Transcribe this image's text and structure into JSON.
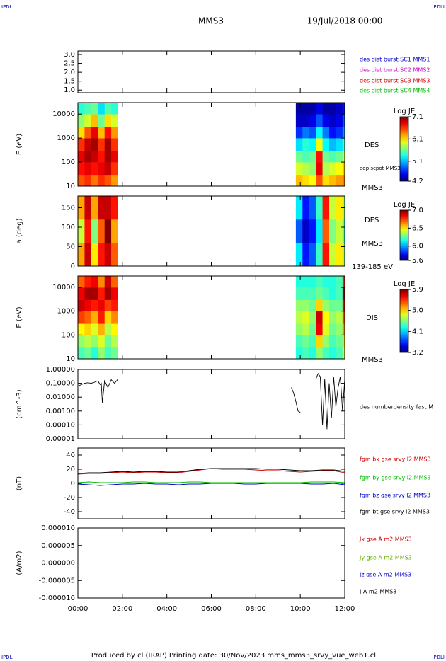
{
  "header": {
    "left": "IPDLI",
    "right": "IPDLI",
    "title": "MMS3",
    "date": "19/Jul/2018 00:00"
  },
  "footer": {
    "text": "Produced by cl (IRAP)   Printing date: 30/Nov/2023   mms_mms3_srvy_vue_web1.cl",
    "left": "IPDLI",
    "right": "IPDLI"
  },
  "chart_data": [
    {
      "type": "line",
      "xlim": [
        0,
        12
      ],
      "ylim": [
        0.85,
        3.2
      ],
      "yticks": [
        {
          "value": 1,
          "label": "1.0"
        },
        {
          "value": 1.5,
          "label": "1.5"
        },
        {
          "value": 2,
          "label": "2.0"
        },
        {
          "value": 2.5,
          "label": "2.5"
        },
        {
          "value": 3,
          "label": "3.0"
        }
      ],
      "x": [],
      "series": [
        {
          "name": "des dist burst SC1 MMS1",
          "color": "#0000cc",
          "values": []
        },
        {
          "name": "des dist burst SC2 MMS2",
          "color": "#cc00cc",
          "values": []
        },
        {
          "name": "des dist burst SC3 MMS3",
          "color": "#cc0000",
          "values": []
        },
        {
          "name": "des dist burst SC4 MMS4",
          "color": "#00bb00",
          "values": []
        }
      ]
    },
    {
      "type": "heatmap",
      "ylabel": "E (eV)",
      "xlim": [
        0,
        12
      ],
      "ylim": [
        10,
        30000
      ],
      "log_y": true,
      "yticks": [
        10,
        100,
        1000,
        10000
      ],
      "y_bins": [
        10,
        30,
        100,
        300,
        1000,
        3000,
        10000,
        30000
      ],
      "colorbar": {
        "title": "Log JE",
        "range": [
          4.2,
          7.1
        ],
        "ticks": [
          7.1,
          6.1,
          5.1,
          4.2
        ]
      },
      "annotations": [
        "DES",
        "edp scpot MMS3",
        "MMS3"
      ],
      "columns": [
        {
          "start": 0,
          "end": 0.3,
          "values": [
            6.5,
            6.7,
            6.8,
            6.6,
            6.1,
            5.7,
            5.4
          ]
        },
        {
          "start": 0.3,
          "end": 0.6,
          "values": [
            6.6,
            6.8,
            7.0,
            6.9,
            6.5,
            5.9,
            5.5
          ]
        },
        {
          "start": 0.6,
          "end": 0.9,
          "values": [
            6.4,
            6.7,
            6.9,
            7.0,
            6.8,
            6.2,
            5.6
          ]
        },
        {
          "start": 0.9,
          "end": 1.2,
          "values": [
            6.6,
            6.8,
            6.7,
            6.6,
            6.2,
            5.6,
            5.2
          ]
        },
        {
          "start": 1.2,
          "end": 1.5,
          "values": [
            6.5,
            6.9,
            7.0,
            7.0,
            6.7,
            6.1,
            5.5
          ]
        },
        {
          "start": 1.5,
          "end": 1.8,
          "values": [
            6.3,
            6.6,
            6.8,
            6.6,
            6.3,
            5.9,
            5.4
          ]
        },
        {
          "start": 9.8,
          "end": 10.1,
          "values": [
            6.2,
            5.9,
            5.6,
            5.2,
            4.7,
            4.4,
            4.3
          ]
        },
        {
          "start": 10.1,
          "end": 10.4,
          "values": [
            6.1,
            5.8,
            5.5,
            5.4,
            4.9,
            4.4,
            4.3
          ]
        },
        {
          "start": 10.4,
          "end": 10.7,
          "values": [
            6.0,
            5.7,
            5.6,
            5.3,
            4.8,
            4.5,
            4.3
          ]
        },
        {
          "start": 10.7,
          "end": 11.0,
          "values": [
            6.5,
            6.8,
            6.7,
            6.0,
            5.3,
            4.8,
            4.5
          ]
        },
        {
          "start": 11.0,
          "end": 11.3,
          "values": [
            6.1,
            5.8,
            5.6,
            5.3,
            4.9,
            4.5,
            4.3
          ]
        },
        {
          "start": 11.3,
          "end": 11.6,
          "values": [
            6.2,
            5.9,
            5.5,
            5.1,
            4.6,
            4.4,
            4.3
          ]
        },
        {
          "start": 11.6,
          "end": 11.9,
          "values": [
            6.3,
            6.0,
            5.6,
            5.2,
            4.7,
            4.5,
            4.4
          ]
        },
        {
          "start": 11.9,
          "end": 12,
          "values": [
            6.4,
            6.2,
            5.9,
            5.5,
            5.0,
            4.8,
            4.6
          ]
        }
      ]
    },
    {
      "type": "heatmap",
      "ylabel": "a (deg)",
      "xlim": [
        0,
        12
      ],
      "ylim": [
        0,
        180
      ],
      "log_y": false,
      "yticks": [
        0,
        50,
        100,
        150
      ],
      "y_bins": [
        0,
        60,
        120,
        180
      ],
      "colorbar": {
        "title": "Log JE",
        "range": [
          5.6,
          7.0
        ],
        "ticks": [
          {
            "value": 7,
            "label": "7.0"
          },
          6.5,
          {
            "value": 6,
            "label": "6.0"
          },
          5.6
        ]
      },
      "annotations": [
        "DES",
        "MMS3",
        "139-185 eV"
      ],
      "columns": [
        {
          "start": 0,
          "end": 0.3,
          "values": [
            6.6,
            6.4,
            6.6
          ]
        },
        {
          "start": 0.3,
          "end": 0.6,
          "values": [
            6.9,
            6.8,
            6.9
          ]
        },
        {
          "start": 0.6,
          "end": 0.9,
          "values": [
            6.5,
            6.3,
            6.6
          ]
        },
        {
          "start": 0.9,
          "end": 1.2,
          "values": [
            6.8,
            6.7,
            6.9
          ]
        },
        {
          "start": 1.2,
          "end": 1.5,
          "values": [
            6.9,
            7.0,
            6.9
          ]
        },
        {
          "start": 1.5,
          "end": 1.8,
          "values": [
            6.7,
            6.6,
            6.8
          ]
        },
        {
          "start": 9.8,
          "end": 10.1,
          "values": [
            6.1,
            5.9,
            6.1
          ]
        },
        {
          "start": 10.1,
          "end": 10.4,
          "values": [
            5.8,
            5.7,
            5.8
          ]
        },
        {
          "start": 10.4,
          "end": 10.7,
          "values": [
            5.9,
            5.8,
            5.9
          ]
        },
        {
          "start": 10.7,
          "end": 11.0,
          "values": [
            6.2,
            6.1,
            6.2
          ]
        },
        {
          "start": 11.0,
          "end": 11.3,
          "values": [
            6.8,
            6.7,
            6.8
          ]
        },
        {
          "start": 11.3,
          "end": 11.6,
          "values": [
            6.4,
            6.3,
            6.4
          ]
        },
        {
          "start": 11.6,
          "end": 11.9,
          "values": [
            6.5,
            6.4,
            6.5
          ]
        },
        {
          "start": 11.9,
          "end": 12,
          "values": [
            6.3,
            6.2,
            6.3
          ]
        }
      ]
    },
    {
      "type": "heatmap",
      "ylabel": "E (eV)",
      "xlim": [
        0,
        12
      ],
      "ylim": [
        10,
        30000
      ],
      "log_y": true,
      "yticks": [
        10,
        100,
        1000,
        10000
      ],
      "y_bins": [
        10,
        30,
        100,
        300,
        1000,
        3000,
        10000,
        30000
      ],
      "colorbar": {
        "title": "Log JE",
        "range": [
          3.2,
          5.9
        ],
        "ticks": [
          5.9,
          {
            "value": 5,
            "label": "5.0"
          },
          4.1,
          3.2
        ]
      },
      "annotations": [
        "DIS",
        "MMS3"
      ],
      "columns": [
        {
          "start": 0,
          "end": 0.3,
          "values": [
            4.4,
            4.6,
            4.9,
            5.4,
            5.7,
            5.6,
            5.3
          ]
        },
        {
          "start": 0.3,
          "end": 0.6,
          "values": [
            4.5,
            4.7,
            5.0,
            5.3,
            5.6,
            5.8,
            5.5
          ]
        },
        {
          "start": 0.6,
          "end": 0.9,
          "values": [
            4.3,
            4.6,
            4.8,
            5.1,
            5.5,
            5.8,
            5.6
          ]
        },
        {
          "start": 0.9,
          "end": 1.2,
          "values": [
            4.6,
            4.8,
            5.1,
            5.5,
            5.6,
            5.5,
            5.2
          ]
        },
        {
          "start": 1.2,
          "end": 1.5,
          "values": [
            4.4,
            4.5,
            4.7,
            5.0,
            5.4,
            5.8,
            5.7
          ]
        },
        {
          "start": 1.5,
          "end": 1.8,
          "values": [
            4.5,
            4.7,
            4.9,
            5.2,
            5.5,
            5.6,
            5.3
          ]
        },
        {
          "start": 9.8,
          "end": 10.1,
          "values": [
            4.3,
            4.4,
            4.6,
            4.7,
            4.6,
            4.4,
            4.3
          ]
        },
        {
          "start": 10.1,
          "end": 10.4,
          "values": [
            4.4,
            4.5,
            4.7,
            4.8,
            4.6,
            4.4,
            4.3
          ]
        },
        {
          "start": 10.4,
          "end": 10.7,
          "values": [
            4.3,
            4.4,
            4.5,
            4.6,
            4.5,
            4.4,
            4.3
          ]
        },
        {
          "start": 10.7,
          "end": 11.0,
          "values": [
            4.6,
            5.0,
            5.6,
            5.7,
            5.0,
            4.5,
            4.4
          ]
        },
        {
          "start": 11.0,
          "end": 11.3,
          "values": [
            4.4,
            4.6,
            4.8,
            4.9,
            4.6,
            4.4,
            4.3
          ]
        },
        {
          "start": 11.3,
          "end": 11.6,
          "values": [
            4.3,
            4.4,
            4.5,
            4.6,
            4.5,
            4.3,
            4.3
          ]
        },
        {
          "start": 11.6,
          "end": 11.9,
          "values": [
            4.4,
            4.5,
            4.6,
            4.7,
            4.5,
            4.4,
            4.4
          ]
        },
        {
          "start": 11.9,
          "end": 12,
          "values": [
            4.8,
            5.0,
            5.2,
            5.4,
            5.6,
            5.8,
            5.5
          ]
        }
      ]
    },
    {
      "type": "line",
      "ylabel": "(cm^-3)",
      "xlim": [
        0,
        12
      ],
      "ylim": [
        1e-05,
        1
      ],
      "log_y": true,
      "yticks": [
        {
          "value": 1,
          "label": "1.00000"
        },
        {
          "value": 0.1,
          "label": "0.10000"
        },
        {
          "value": 0.01,
          "label": "0.01000"
        },
        {
          "value": 0.001,
          "label": "0.00100"
        },
        {
          "value": 0.0001,
          "label": "0.00010"
        },
        {
          "value": 1e-05,
          "label": "0.00001"
        }
      ],
      "x": [
        0,
        0.15,
        0.3,
        0.45,
        0.6,
        0.75,
        0.9,
        1.0,
        1.05,
        1.1,
        1.2,
        1.35,
        1.5,
        1.65,
        1.8,
        1.85,
        9.6,
        9.7,
        9.8,
        9.9,
        10.0,
        10.05,
        10.7,
        10.8,
        10.9,
        11.0,
        11.1,
        11.2,
        11.3,
        11.4,
        11.5,
        11.6,
        11.7,
        11.8,
        11.9,
        12.0
      ],
      "series": [
        {
          "name": "des numberdensity fast M",
          "color": "#000000",
          "values": [
            0.06,
            0.08,
            0.1,
            0.11,
            0.1,
            0.12,
            0.15,
            0.08,
            0.1,
            0.004,
            0.15,
            0.05,
            0.18,
            0.1,
            0.2,
            null,
            0.05,
            0.02,
            0.005,
            0.001,
            0.0008,
            null,
            0.2,
            0.5,
            0.3,
            0.0001,
            0.2,
            5e-05,
            0.1,
            0.0003,
            0.3,
            0.002,
            0.05,
            0.3,
            0.001,
            0.2
          ]
        }
      ]
    },
    {
      "type": "line",
      "ylabel": "(nT)",
      "xlim": [
        0,
        12
      ],
      "ylim": [
        -50,
        50
      ],
      "log_y": false,
      "yticks": [
        40,
        20,
        0,
        -20,
        -40
      ],
      "x": [
        0,
        0.5,
        1,
        1.5,
        2,
        2.5,
        3,
        3.5,
        4,
        4.5,
        5,
        5.5,
        6,
        6.5,
        7,
        7.5,
        8,
        8.5,
        9,
        9.5,
        10,
        10.5,
        11,
        11.5,
        12
      ],
      "series": [
        {
          "name": "fgm bx gse srvy l2 MMS3",
          "color": "#cc0000",
          "values": [
            13,
            14,
            14,
            15,
            16,
            15,
            16,
            16,
            15,
            15,
            17,
            19,
            21,
            20,
            20,
            20,
            19,
            18,
            18,
            17,
            16,
            17,
            18,
            18,
            15
          ]
        },
        {
          "name": "fgm by gse srvy l2 MMS3",
          "color": "#00bb00",
          "values": [
            1,
            2,
            1,
            1,
            1,
            2,
            2,
            1,
            1,
            1,
            2,
            2,
            1,
            1,
            1,
            1,
            1,
            1,
            1,
            1,
            1,
            2,
            2,
            2,
            1
          ]
        },
        {
          "name": "fgm bz gse srvy l2 MMS3",
          "color": "#0000cc",
          "values": [
            -1,
            -2,
            -3,
            -2,
            -1,
            -1,
            0,
            -1,
            -1,
            -2,
            -1,
            -1,
            0,
            0,
            0,
            -1,
            -1,
            0,
            0,
            0,
            0,
            -1,
            -1,
            0,
            -2
          ]
        },
        {
          "name": "fgm bt gse srvy l2 MMS3",
          "color": "#000000",
          "values": [
            14,
            15,
            15,
            16,
            17,
            16,
            17,
            17,
            16,
            16,
            18,
            20,
            21,
            21,
            21,
            21,
            21,
            20,
            20,
            19,
            18,
            18,
            19,
            19,
            17
          ]
        }
      ]
    },
    {
      "type": "line",
      "ylabel": "(A/m2)",
      "xlim": [
        0,
        12
      ],
      "ylim": [
        -1e-05,
        1e-05
      ],
      "log_y": false,
      "yticks": [
        {
          "value": 1e-05,
          "label": "0.000010"
        },
        {
          "value": 5e-06,
          "label": "0.000005"
        },
        {
          "value": 0,
          "label": "0.000000"
        },
        {
          "value": -5e-06,
          "label": "-0.000005"
        },
        {
          "value": -1e-05,
          "label": "-0.000010"
        }
      ],
      "xticks": [
        {
          "value": 0,
          "label": "00:00"
        },
        {
          "value": 2,
          "label": "02:00"
        },
        {
          "value": 4,
          "label": "04:00"
        },
        {
          "value": 6,
          "label": "06:00"
        },
        {
          "value": 8,
          "label": "08:00"
        },
        {
          "value": 10,
          "label": "10:00"
        },
        {
          "value": 12,
          "label": "12:00"
        }
      ],
      "x": [
        0,
        12
      ],
      "series": [
        {
          "name": "Jx gse A m2 MMS3",
          "color": "#cc0000",
          "values": [
            0,
            0
          ]
        },
        {
          "name": "Jy gse A m2 MMS3",
          "color": "#66aa00",
          "values": [
            0,
            0
          ]
        },
        {
          "name": "Jz gse A m2 MMS3",
          "color": "#0000cc",
          "values": [
            0,
            0
          ]
        },
        {
          "name": "J A m2 MMS3",
          "color": "#000000",
          "values": [
            0,
            0
          ]
        }
      ]
    }
  ]
}
